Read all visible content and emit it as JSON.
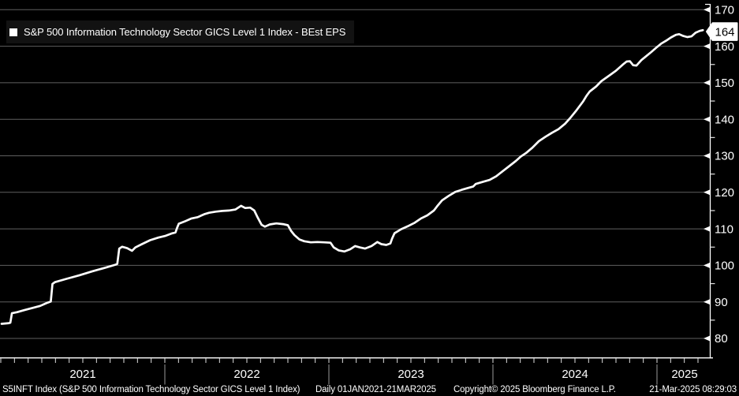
{
  "legend": {
    "marker": "white-square",
    "label": "S&P 500 Information Technology Sector GICS Level 1 Index - BEst EPS"
  },
  "footer": {
    "left": "S5INFT Index (S&P 500 Information Technology Sector GICS Level 1 Index)",
    "range": "Daily 01JAN2021-21MAR2025",
    "copyright": "Copyright© 2025 Bloomberg Finance L.P.",
    "timestamp": "21-Mar-2025 08:29:03"
  },
  "colors": {
    "background": "#000000",
    "line": "#ffffff",
    "grid": "#5f5f5f",
    "axis": "#ffffff",
    "tick": "#e0e0e0",
    "year_separator": "#9a9a9a",
    "legend_bg": "#121212",
    "tag_bg": "#ffffff",
    "tag_text": "#000000",
    "label_text": "#ffffff"
  },
  "chart_data": {
    "type": "line",
    "title": "S&P 500 Information Technology Sector GICS Level 1 Index - BEst EPS",
    "xlabel": "",
    "ylabel": "BEst EPS",
    "x_tick_labels": [
      "2021",
      "2022",
      "2023",
      "2024",
      "2025"
    ],
    "y_major_ticks": [
      80,
      90,
      100,
      110,
      120,
      130,
      140,
      150,
      160,
      170
    ],
    "y_minor_step": 5,
    "xlim": [
      2021.0,
      2025.33
    ],
    "ylim": [
      74.5,
      171.5
    ],
    "grid": "horizontal",
    "legend_position": "top-left",
    "last_price": "164",
    "series": [
      {
        "name": "S&P 500 Information Technology Sector GICS Level 1 Index - BEst EPS",
        "color": "#ffffff",
        "points": [
          [
            2021.005,
            84.0
          ],
          [
            2021.05,
            84.2
          ],
          [
            2021.058,
            84.3
          ],
          [
            2021.068,
            86.9
          ],
          [
            2021.1,
            87.2
          ],
          [
            2021.14,
            87.7
          ],
          [
            2021.19,
            88.3
          ],
          [
            2021.24,
            88.9
          ],
          [
            2021.28,
            89.7
          ],
          [
            2021.305,
            90.1
          ],
          [
            2021.315,
            94.9
          ],
          [
            2021.33,
            95.4
          ],
          [
            2021.4,
            96.3
          ],
          [
            2021.48,
            97.3
          ],
          [
            2021.56,
            98.4
          ],
          [
            2021.64,
            99.4
          ],
          [
            2021.7,
            100.2
          ],
          [
            2021.71,
            100.4
          ],
          [
            2021.722,
            104.6
          ],
          [
            2021.74,
            105.1
          ],
          [
            2021.77,
            104.7
          ],
          [
            2021.8,
            104.0
          ],
          [
            2021.82,
            104.9
          ],
          [
            2021.86,
            105.8
          ],
          [
            2021.91,
            106.9
          ],
          [
            2021.96,
            107.6
          ],
          [
            2022.005,
            108.1
          ],
          [
            2022.04,
            108.7
          ],
          [
            2022.065,
            109.0
          ],
          [
            2022.075,
            110.3
          ],
          [
            2022.085,
            111.4
          ],
          [
            2022.12,
            112.0
          ],
          [
            2022.16,
            112.8
          ],
          [
            2022.2,
            113.2
          ],
          [
            2022.24,
            114.0
          ],
          [
            2022.27,
            114.4
          ],
          [
            2022.31,
            114.7
          ],
          [
            2022.35,
            114.9
          ],
          [
            2022.39,
            115.0
          ],
          [
            2022.43,
            115.3
          ],
          [
            2022.465,
            116.3
          ],
          [
            2022.49,
            115.7
          ],
          [
            2022.52,
            115.8
          ],
          [
            2022.545,
            115.0
          ],
          [
            2022.565,
            113.2
          ],
          [
            2022.59,
            111.1
          ],
          [
            2022.61,
            110.6
          ],
          [
            2022.64,
            111.2
          ],
          [
            2022.68,
            111.5
          ],
          [
            2022.72,
            111.3
          ],
          [
            2022.75,
            111.0
          ],
          [
            2022.77,
            109.4
          ],
          [
            2022.79,
            108.3
          ],
          [
            2022.82,
            107.1
          ],
          [
            2022.85,
            106.6
          ],
          [
            2022.89,
            106.3
          ],
          [
            2022.93,
            106.4
          ],
          [
            2022.97,
            106.3
          ],
          [
            2023.01,
            106.2
          ],
          [
            2023.03,
            104.9
          ],
          [
            2023.06,
            104.1
          ],
          [
            2023.095,
            103.8
          ],
          [
            2023.13,
            104.4
          ],
          [
            2023.16,
            105.3
          ],
          [
            2023.19,
            104.9
          ],
          [
            2023.22,
            104.6
          ],
          [
            2023.26,
            105.3
          ],
          [
            2023.295,
            106.4
          ],
          [
            2023.32,
            105.8
          ],
          [
            2023.35,
            105.6
          ],
          [
            2023.375,
            106.0
          ],
          [
            2023.385,
            107.3
          ],
          [
            2023.4,
            108.8
          ],
          [
            2023.44,
            109.9
          ],
          [
            2023.48,
            110.7
          ],
          [
            2023.52,
            111.6
          ],
          [
            2023.56,
            112.8
          ],
          [
            2023.6,
            113.7
          ],
          [
            2023.64,
            115.0
          ],
          [
            2023.66,
            116.2
          ],
          [
            2023.69,
            117.8
          ],
          [
            2023.73,
            119.0
          ],
          [
            2023.77,
            120.1
          ],
          [
            2023.81,
            120.7
          ],
          [
            2023.85,
            121.2
          ],
          [
            2023.88,
            121.6
          ],
          [
            2023.895,
            122.3
          ],
          [
            2023.94,
            122.9
          ],
          [
            2023.98,
            123.4
          ],
          [
            2024.02,
            124.4
          ],
          [
            2024.06,
            125.8
          ],
          [
            2024.1,
            127.2
          ],
          [
            2024.14,
            128.6
          ],
          [
            2024.17,
            129.8
          ],
          [
            2024.2,
            130.7
          ],
          [
            2024.24,
            132.2
          ],
          [
            2024.28,
            134.0
          ],
          [
            2024.32,
            135.2
          ],
          [
            2024.36,
            136.3
          ],
          [
            2024.4,
            137.3
          ],
          [
            2024.44,
            138.8
          ],
          [
            2024.47,
            140.3
          ],
          [
            2024.51,
            142.5
          ],
          [
            2024.55,
            144.9
          ],
          [
            2024.57,
            146.4
          ],
          [
            2024.59,
            147.6
          ],
          [
            2024.63,
            149.0
          ],
          [
            2024.66,
            150.4
          ],
          [
            2024.71,
            152.0
          ],
          [
            2024.75,
            153.3
          ],
          [
            2024.79,
            154.9
          ],
          [
            2024.815,
            155.8
          ],
          [
            2024.835,
            155.9
          ],
          [
            2024.855,
            154.8
          ],
          [
            2024.875,
            154.7
          ],
          [
            2024.905,
            156.2
          ],
          [
            2024.935,
            157.3
          ],
          [
            2024.965,
            158.4
          ],
          [
            2024.995,
            159.6
          ],
          [
            2025.025,
            160.7
          ],
          [
            2025.055,
            161.5
          ],
          [
            2025.085,
            162.4
          ],
          [
            2025.115,
            163.1
          ],
          [
            2025.135,
            163.3
          ],
          [
            2025.16,
            162.8
          ],
          [
            2025.185,
            162.5
          ],
          [
            2025.21,
            162.7
          ],
          [
            2025.235,
            163.7
          ],
          [
            2025.26,
            164.2
          ],
          [
            2025.28,
            164.4
          ]
        ]
      }
    ]
  }
}
